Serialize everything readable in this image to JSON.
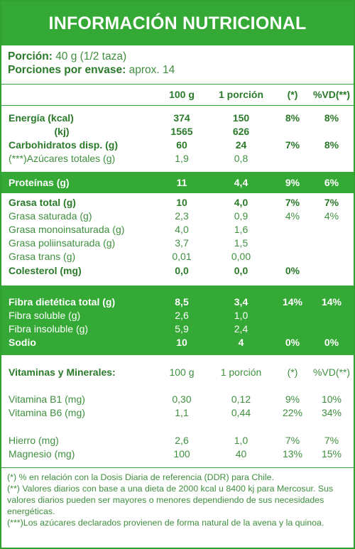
{
  "title": "INFORMACIÓN NUTRICIONAL",
  "serving": {
    "porcion_label": "Porción:",
    "porcion_value": "40 g (1/2 taza)",
    "envase_label": "Porciones por envase:",
    "envase_value": "aprox. 14"
  },
  "header": {
    "c1": "100 g",
    "c2": "1 porción",
    "c3": "(*)",
    "c4": "%VD(**)"
  },
  "rows": [
    {
      "name": "Energía (kcal)",
      "v100": "374",
      "vpor": "150",
      "pct": "8%",
      "vd": "8%"
    },
    {
      "name": "(kj)",
      "v100": "1565",
      "vpor": "626",
      "pct": "",
      "vd": ""
    },
    {
      "name": "Carbohidratos disp. (g)",
      "v100": "60",
      "vpor": "24",
      "pct": "7%",
      "vd": "8%"
    },
    {
      "name": "(***)Azúcares totales (g)",
      "v100": "1,9",
      "vpor": "0,8",
      "pct": "",
      "vd": ""
    },
    {
      "name": "Proteínas (g)",
      "v100": "11",
      "vpor": "4,4",
      "pct": "9%",
      "vd": "6%"
    },
    {
      "name": "Grasa total (g)",
      "v100": "10",
      "vpor": "4,0",
      "pct": "7%",
      "vd": "7%"
    },
    {
      "name": "Grasa saturada (g)",
      "v100": "2,3",
      "vpor": "0,9",
      "pct": "4%",
      "vd": "4%"
    },
    {
      "name": "Grasa monoinsaturada (g)",
      "v100": "4,0",
      "vpor": "1,6",
      "pct": "",
      "vd": ""
    },
    {
      "name": "Grasa poliinsaturada (g)",
      "v100": "3,7",
      "vpor": "1,5",
      "pct": "",
      "vd": ""
    },
    {
      "name": "Grasa trans (g)",
      "v100": "0,01",
      "vpor": "0,00",
      "pct": "",
      "vd": ""
    },
    {
      "name": "Colesterol (mg)",
      "v100": "0,0",
      "vpor": "0,0",
      "pct": "0%",
      "vd": ""
    },
    {
      "name": "Fibra dietética total (g)",
      "v100": "8,5",
      "vpor": "3,4",
      "pct": "14%",
      "vd": "14%"
    },
    {
      "name": "Fibra soluble (g)",
      "v100": "2,6",
      "vpor": "1,0",
      "pct": "",
      "vd": ""
    },
    {
      "name": "Fibra insoluble (g)",
      "v100": "5,9",
      "vpor": "2,4",
      "pct": "",
      "vd": ""
    },
    {
      "name": "Sodio",
      "v100": "10",
      "vpor": "4",
      "pct": "0%",
      "vd": "0%"
    },
    {
      "name": "Vitaminas y Minerales:",
      "v100": "100 g",
      "vpor": "1 porción",
      "pct": "(*)",
      "vd": "%VD(**)"
    },
    {
      "name": "Vitamina B1 (mg)",
      "v100": "0,30",
      "vpor": "0,12",
      "pct": "9%",
      "vd": "10%"
    },
    {
      "name": "Vitamina B6 (mg)",
      "v100": "1,1",
      "vpor": "0,44",
      "pct": "22%",
      "vd": "34%"
    },
    {
      "name": "Hierro (mg)",
      "v100": "2,6",
      "vpor": "1,0",
      "pct": "7%",
      "vd": "7%"
    },
    {
      "name": "Magnesio (mg)",
      "v100": "100",
      "vpor": "40",
      "pct": "13%",
      "vd": "15%"
    }
  ],
  "footnotes": [
    "(*) % en relación con la Dosis Diaria de referencia (DDR) para Chile.",
    "(**) Valores diarios con base a una dieta de 2000 kcal u 8400 kj para Mercosur. Sus valores diarios pueden ser mayores o menores dependiendo de sus necesidades energéticas.",
    "(***)Los azúcares declarados provienen de forma natural de la avena y la quinoa."
  ]
}
